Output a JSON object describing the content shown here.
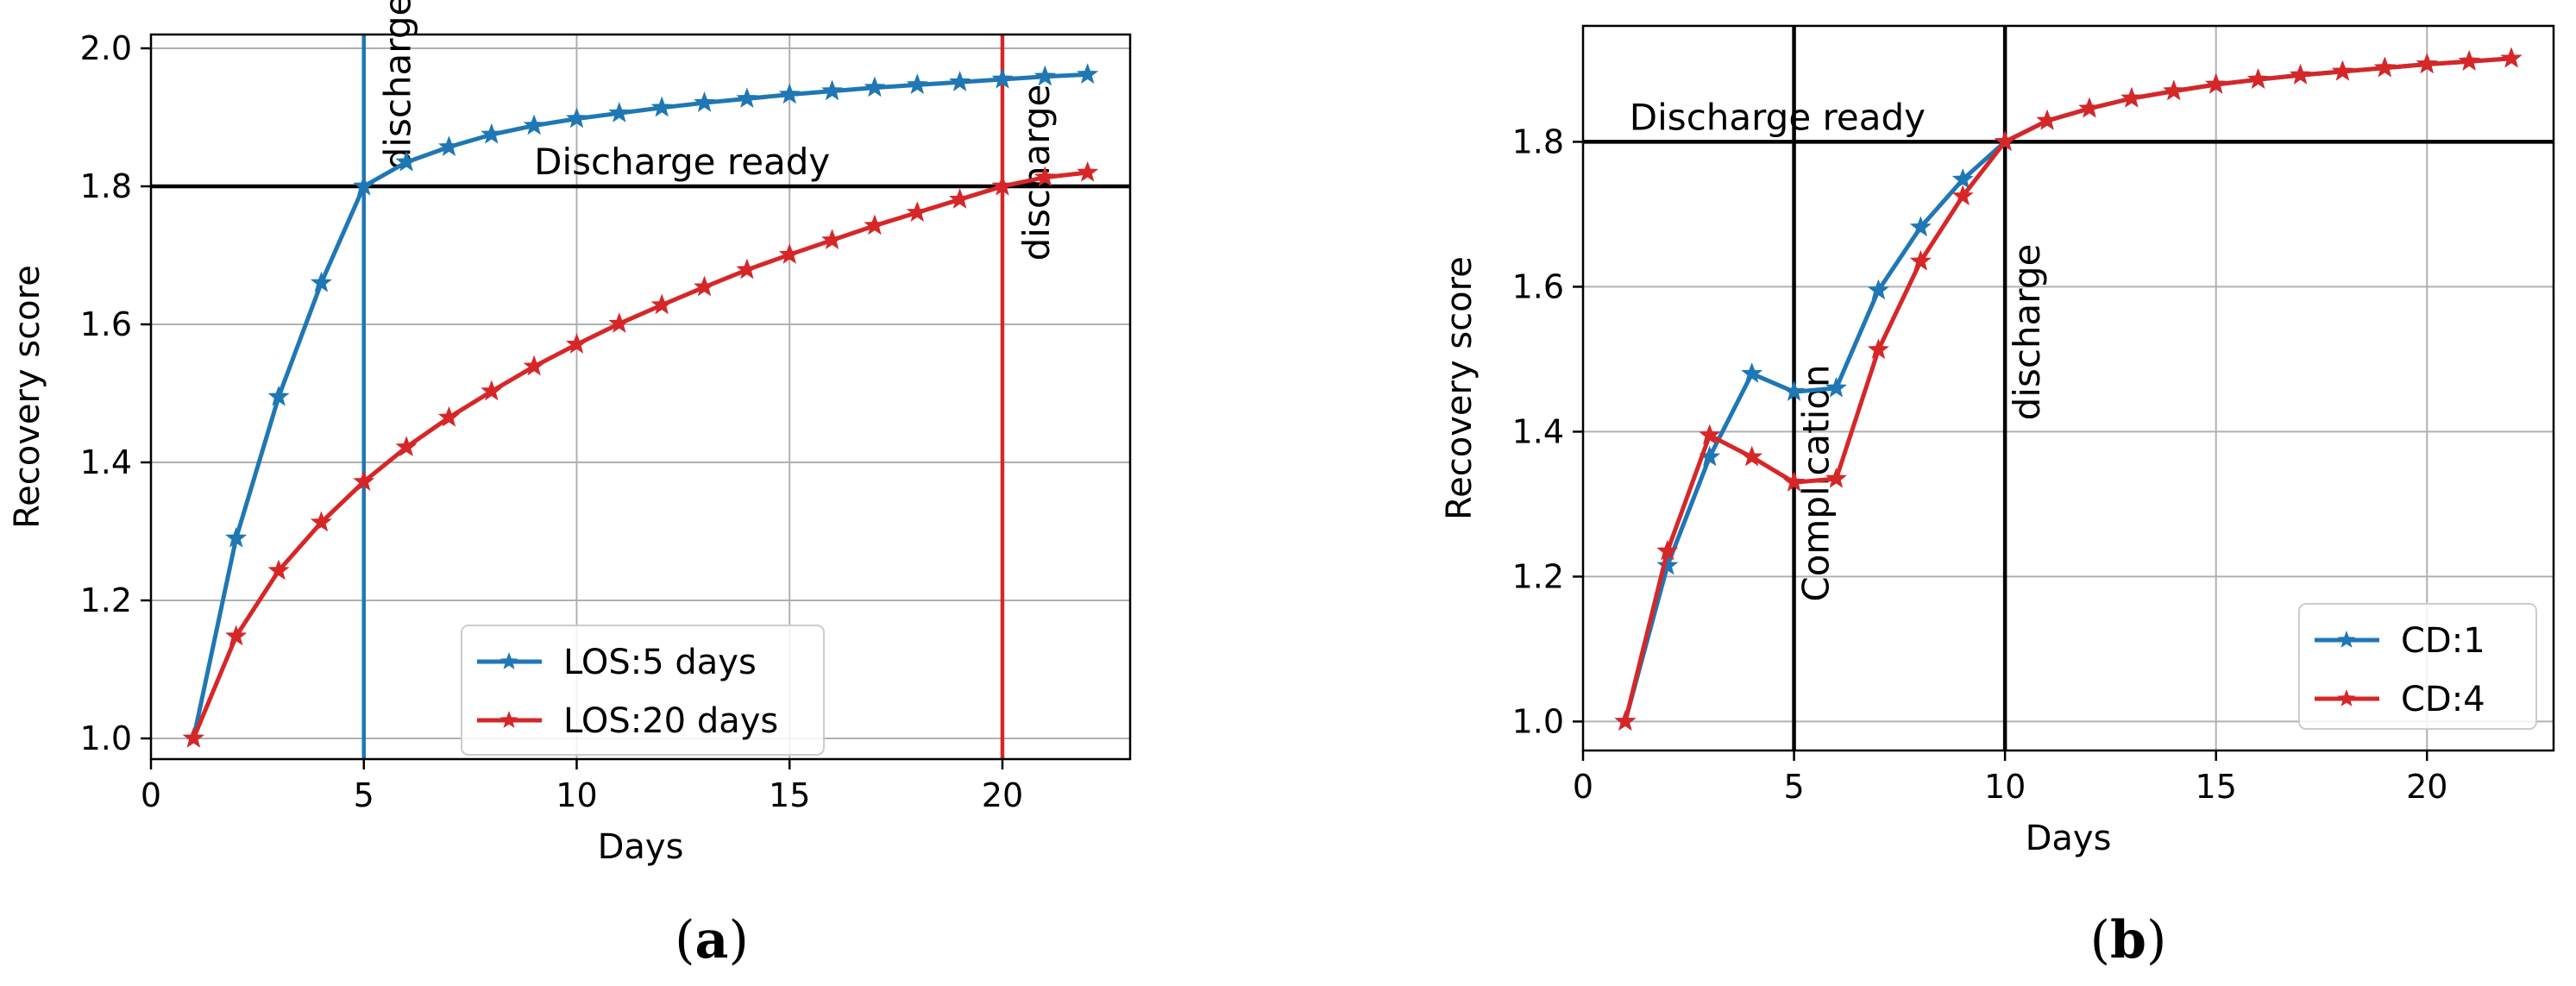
{
  "colors": {
    "blue": "#1f77b4",
    "red": "#d62728",
    "grid": "#b0b0b0",
    "black": "#000000"
  },
  "chart_data": [
    {
      "type": "line",
      "caption": "a",
      "xlabel": "Days",
      "ylabel": "Recovery score",
      "xlim": [
        0,
        23
      ],
      "ylim": [
        0.97,
        2.02
      ],
      "xticks": [
        0,
        5,
        10,
        15,
        20
      ],
      "yticks": [
        1.0,
        1.2,
        1.4,
        1.6,
        1.8,
        2.0
      ],
      "grid": true,
      "legend_position": "lower-center",
      "series": [
        {
          "name": "LOS:5 days",
          "color": "blue",
          "marker": "star",
          "x": [
            1,
            2,
            3,
            4,
            5,
            6,
            7,
            8,
            9,
            10,
            11,
            12,
            13,
            14,
            15,
            16,
            17,
            18,
            19,
            20,
            21,
            22
          ],
          "y": [
            1.0,
            1.29,
            1.495,
            1.66,
            1.8,
            1.835,
            1.857,
            1.875,
            1.888,
            1.898,
            1.906,
            1.914,
            1.921,
            1.927,
            1.933,
            1.938,
            1.943,
            1.947,
            1.951,
            1.955,
            1.959,
            1.962
          ]
        },
        {
          "name": "LOS:20 days",
          "color": "red",
          "marker": "star",
          "x": [
            1,
            2,
            3,
            4,
            5,
            6,
            7,
            8,
            9,
            10,
            11,
            12,
            13,
            14,
            15,
            16,
            17,
            18,
            19,
            20,
            21,
            22
          ],
          "y": [
            1.0,
            1.148,
            1.243,
            1.313,
            1.372,
            1.422,
            1.465,
            1.503,
            1.539,
            1.571,
            1.601,
            1.628,
            1.654,
            1.679,
            1.701,
            1.722,
            1.743,
            1.762,
            1.781,
            1.8,
            1.813,
            1.82
          ]
        }
      ],
      "hlines": [
        {
          "y": 1.8,
          "color": "black",
          "label": "Discharge ready",
          "label_x": 9.0
        }
      ],
      "vlines": [
        {
          "x": 5,
          "color": "blue",
          "label": "discharge"
        },
        {
          "x": 20,
          "color": "red",
          "label": "discharge"
        }
      ]
    },
    {
      "type": "line",
      "caption": "b",
      "xlabel": "Days",
      "ylabel": "Recovery score",
      "xlim": [
        0,
        23
      ],
      "ylim": [
        0.96,
        1.96
      ],
      "xticks": [
        0,
        5,
        10,
        15,
        20
      ],
      "yticks": [
        1.0,
        1.2,
        1.4,
        1.6,
        1.8
      ],
      "grid": true,
      "legend_position": "lower-right",
      "series": [
        {
          "name": "CD:1",
          "color": "blue",
          "marker": "star",
          "x": [
            1,
            2,
            3,
            4,
            5,
            6,
            7,
            8,
            9,
            10,
            11,
            12,
            13,
            14,
            15,
            16,
            17,
            18,
            19,
            20,
            21,
            22
          ],
          "y": [
            1.0,
            1.215,
            1.365,
            1.48,
            1.455,
            1.46,
            1.595,
            1.682,
            1.748,
            1.8,
            1.829,
            1.846,
            1.86,
            1.87,
            1.879,
            1.886,
            1.892,
            1.897,
            1.902,
            1.907,
            1.911,
            1.915
          ]
        },
        {
          "name": "CD:4",
          "color": "red",
          "marker": "star",
          "x": [
            1,
            2,
            3,
            4,
            5,
            6,
            7,
            8,
            9,
            10,
            11,
            12,
            13,
            14,
            15,
            16,
            17,
            18,
            19,
            20,
            21,
            22
          ],
          "y": [
            1.0,
            1.235,
            1.395,
            1.365,
            1.33,
            1.335,
            1.513,
            1.635,
            1.725,
            1.8,
            1.829,
            1.846,
            1.86,
            1.87,
            1.879,
            1.886,
            1.892,
            1.897,
            1.902,
            1.907,
            1.911,
            1.915
          ]
        }
      ],
      "hlines": [
        {
          "y": 1.8,
          "color": "black",
          "label": "Discharge ready",
          "label_x": 1.1
        }
      ],
      "vlines": [
        {
          "x": 5,
          "color": "black",
          "label": "Complication"
        },
        {
          "x": 10,
          "color": "black",
          "label": "discharge"
        }
      ]
    }
  ]
}
